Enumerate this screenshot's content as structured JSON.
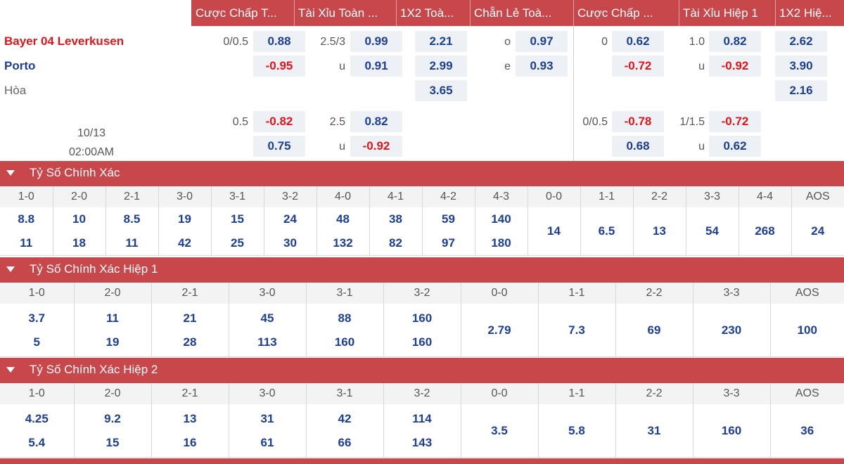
{
  "market_headers": [
    "Cược Chấp T...",
    "Tài Xỉu Toàn ...",
    "1X2 Toà...",
    "Chẵn Lẻ Toà...",
    "Cược Chấp ...",
    "Tài Xỉu Hiệp 1",
    "1X2 Hiệ..."
  ],
  "match": {
    "home": "Bayer 04 Leverkusen",
    "away": "Porto",
    "draw": "Hòa",
    "date": "10/13",
    "time": "02:00AM"
  },
  "odds": {
    "row1": {
      "ah_line": "0/0.5",
      "ah_home": "0.88",
      "ah_away": "-0.95",
      "ou_line": "2.5/3",
      "ou_over": "0.99",
      "ou_under_label": "u",
      "ou_under": "0.91",
      "x12_home": "2.21",
      "x12_away": "2.99",
      "x12_draw": "3.65",
      "oe_odd_label": "o",
      "oe_odd": "0.97",
      "oe_even_label": "e",
      "oe_even": "0.93",
      "h1_ah_line": "0",
      "h1_ah_home": "0.62",
      "h1_ah_away": "-0.72",
      "h1_ou_line": "1.0",
      "h1_ou_over": "0.82",
      "h1_ou_under_label": "u",
      "h1_ou_under": "-0.92",
      "h1_x12_home": "2.62",
      "h1_x12_away": "3.90",
      "h1_x12_draw": "2.16"
    },
    "row2": {
      "ah_line": "0.5",
      "ah_home": "-0.82",
      "ah_away": "0.75",
      "ou_line": "2.5",
      "ou_over": "0.82",
      "ou_under_label": "u",
      "ou_under": "-0.92",
      "h1_ah_line": "0/0.5",
      "h1_ah_home": "-0.78",
      "h1_ah_away": "0.68",
      "h1_ou_line": "1/1.5",
      "h1_ou_over": "-0.72",
      "h1_ou_under_label": "u",
      "h1_ou_under": "0.62"
    }
  },
  "sections": [
    {
      "title": "Tỷ Số Chính Xác",
      "columns": [
        {
          "score": "1-0",
          "home": "8.8",
          "away": "11"
        },
        {
          "score": "2-0",
          "home": "10",
          "away": "18"
        },
        {
          "score": "2-1",
          "home": "8.5",
          "away": "11"
        },
        {
          "score": "3-0",
          "home": "19",
          "away": "42"
        },
        {
          "score": "3-1",
          "home": "15",
          "away": "25"
        },
        {
          "score": "3-2",
          "home": "24",
          "away": "30"
        },
        {
          "score": "4-0",
          "home": "48",
          "away": "132"
        },
        {
          "score": "4-1",
          "home": "38",
          "away": "82"
        },
        {
          "score": "4-2",
          "home": "59",
          "away": "97"
        },
        {
          "score": "4-3",
          "home": "140",
          "away": "180"
        },
        {
          "score": "0-0",
          "single": "14"
        },
        {
          "score": "1-1",
          "single": "6.5"
        },
        {
          "score": "2-2",
          "single": "13"
        },
        {
          "score": "3-3",
          "single": "54"
        },
        {
          "score": "4-4",
          "single": "268"
        },
        {
          "score": "AOS",
          "single": "24"
        }
      ]
    },
    {
      "title": "Tỷ Số Chính Xác Hiệp 1",
      "columns": [
        {
          "score": "1-0",
          "home": "3.7",
          "away": "5"
        },
        {
          "score": "2-0",
          "home": "11",
          "away": "19"
        },
        {
          "score": "2-1",
          "home": "21",
          "away": "28"
        },
        {
          "score": "3-0",
          "home": "45",
          "away": "113"
        },
        {
          "score": "3-1",
          "home": "88",
          "away": "160"
        },
        {
          "score": "3-2",
          "home": "160",
          "away": "160"
        },
        {
          "score": "0-0",
          "single": "2.79"
        },
        {
          "score": "1-1",
          "single": "7.3"
        },
        {
          "score": "2-2",
          "single": "69"
        },
        {
          "score": "3-3",
          "single": "230"
        },
        {
          "score": "AOS",
          "single": "100"
        }
      ]
    },
    {
      "title": "Tỷ Số Chính Xác Hiệp 2",
      "columns": [
        {
          "score": "1-0",
          "home": "4.25",
          "away": "5.4"
        },
        {
          "score": "2-0",
          "home": "9.2",
          "away": "15"
        },
        {
          "score": "2-1",
          "home": "13",
          "away": "16"
        },
        {
          "score": "3-0",
          "home": "31",
          "away": "61"
        },
        {
          "score": "3-1",
          "home": "42",
          "away": "66"
        },
        {
          "score": "3-2",
          "home": "114",
          "away": "143"
        },
        {
          "score": "0-0",
          "single": "3.5"
        },
        {
          "score": "1-1",
          "single": "5.8"
        },
        {
          "score": "2-2",
          "single": "31"
        },
        {
          "score": "3-3",
          "single": "160"
        },
        {
          "score": "AOS",
          "single": "36"
        }
      ]
    }
  ],
  "colors": {
    "header_red": "#c8474b",
    "positive_blue": "#1c3f94",
    "negative_red": "#e0151b",
    "odds_cell_bg": "#edf0f5"
  }
}
